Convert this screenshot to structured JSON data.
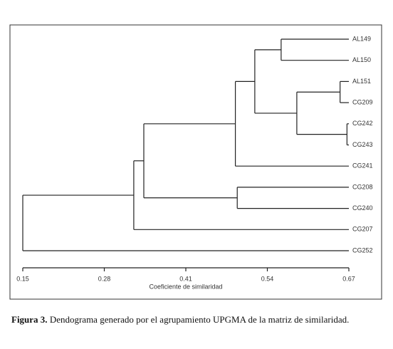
{
  "chart_data": {
    "type": "dendrogram",
    "xlabel": "Coeficiente de similaridad",
    "leaves": [
      "AL149",
      "AL150",
      "AL151",
      "CG209",
      "CG242",
      "CG243",
      "CG241",
      "CG208",
      "CG240",
      "CG207",
      "CG252"
    ],
    "merges": [
      {
        "children": [
          0,
          1
        ],
        "value": 0.562
      },
      {
        "children": [
          2,
          3
        ],
        "value": 0.656
      },
      {
        "children": [
          4,
          5
        ],
        "value": 0.667
      },
      {
        "children": [
          12,
          13
        ],
        "value": 0.587
      },
      {
        "children": [
          11,
          14
        ],
        "value": 0.52
      },
      {
        "children": [
          15,
          6
        ],
        "value": 0.489
      },
      {
        "children": [
          7,
          8
        ],
        "value": 0.492
      },
      {
        "children": [
          16,
          17
        ],
        "value": 0.343
      },
      {
        "children": [
          18,
          9
        ],
        "value": 0.327
      },
      {
        "children": [
          19,
          10
        ],
        "value": 0.15
      }
    ],
    "xlim": [
      0.15,
      0.67
    ],
    "xticks": [
      0.15,
      0.28,
      0.41,
      0.54,
      0.67
    ]
  },
  "caption": {
    "label": "Figura 3.",
    "text": "Dendograma generado por el agrupamiento UPGMA de la matriz de similaridad."
  }
}
